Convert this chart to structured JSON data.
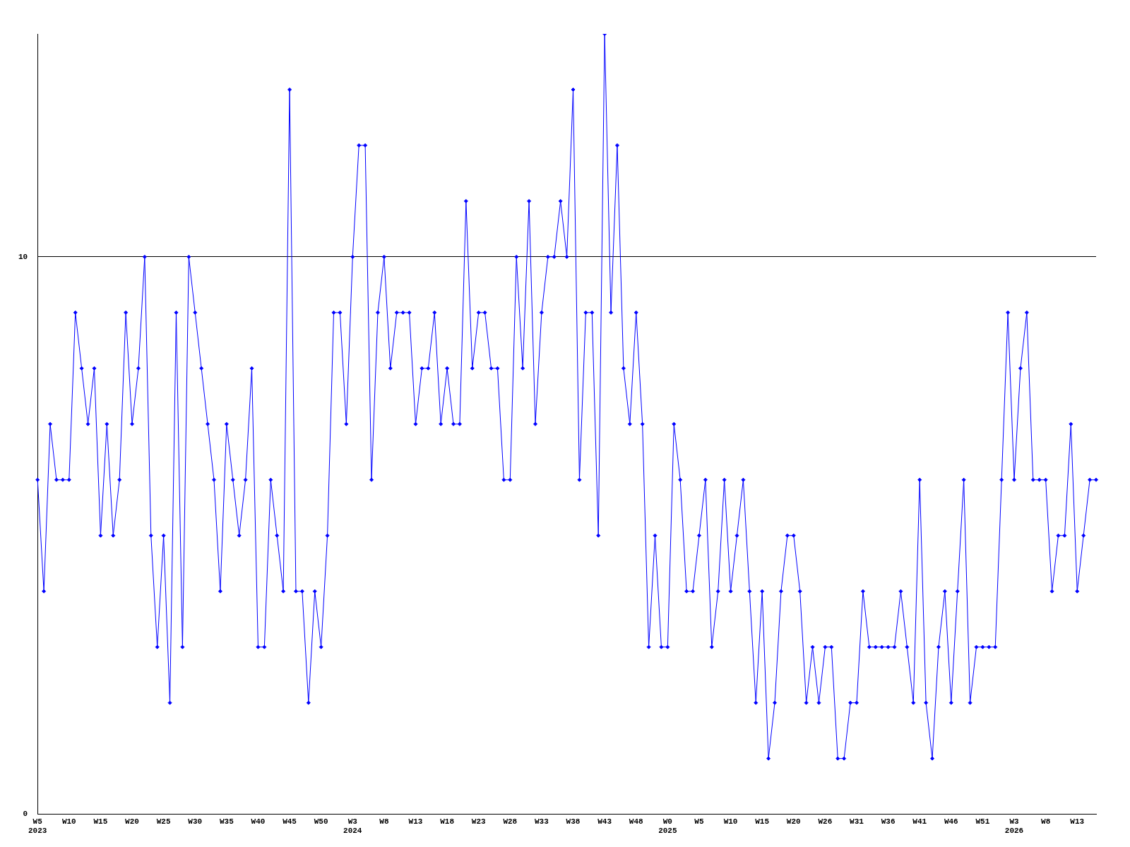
{
  "chart_data": {
    "type": "line",
    "categories": [
      "W5\n2023",
      null,
      null,
      null,
      null,
      "W10",
      null,
      null,
      null,
      null,
      "W15",
      null,
      null,
      null,
      null,
      "W20",
      null,
      null,
      null,
      null,
      "W25",
      null,
      null,
      null,
      null,
      "W30",
      null,
      null,
      null,
      null,
      "W35",
      null,
      null,
      null,
      null,
      "W40",
      null,
      null,
      null,
      null,
      "W45",
      null,
      null,
      null,
      null,
      "W50",
      null,
      null,
      null,
      null,
      "W3\n2024",
      null,
      null,
      null,
      null,
      "W8",
      null,
      null,
      null,
      null,
      "W13",
      null,
      null,
      null,
      null,
      "W18",
      null,
      null,
      null,
      null,
      "W23",
      null,
      null,
      null,
      null,
      "W28",
      null,
      null,
      null,
      null,
      "W33",
      null,
      null,
      null,
      null,
      "W38",
      null,
      null,
      null,
      null,
      "W43",
      null,
      null,
      null,
      null,
      "W48",
      null,
      null,
      null,
      null,
      "W0\n2025",
      null,
      null,
      null,
      null,
      "W5",
      null,
      null,
      null,
      null,
      "W10",
      null,
      null,
      null,
      null,
      "W15",
      null,
      null,
      null,
      null,
      "W20",
      null,
      null,
      null,
      null,
      "W26",
      null,
      null,
      null,
      null,
      "W31",
      null,
      null,
      null,
      null,
      "W36",
      null,
      null,
      null,
      null,
      "W41",
      null,
      null,
      null,
      null,
      "W46",
      null,
      null,
      null,
      null,
      "W51",
      null,
      null,
      null,
      null,
      "W3\n2026",
      null,
      null,
      null,
      null,
      "W8",
      null,
      null,
      null,
      null,
      "W13",
      null,
      null,
      null
    ],
    "series": [
      {
        "color": "#0000ff",
        "values": [
          6,
          4,
          7,
          6,
          6,
          6,
          9,
          8,
          7,
          8,
          5,
          7,
          5,
          6,
          9,
          7,
          8,
          10,
          5,
          3,
          5,
          2,
          9,
          3,
          10,
          9,
          8,
          7,
          6,
          4,
          7,
          6,
          5,
          6,
          8,
          3,
          3,
          6,
          5,
          4,
          13,
          4,
          4,
          2,
          4,
          3,
          5,
          9,
          9,
          7,
          10,
          12,
          12,
          6,
          9,
          10,
          8,
          9,
          9,
          9,
          7,
          8,
          8,
          9,
          7,
          8,
          7,
          7,
          11,
          8,
          9,
          9,
          8,
          8,
          6,
          6,
          10,
          8,
          11,
          7,
          9,
          10,
          10,
          11,
          10,
          13,
          6,
          9,
          9,
          5,
          14,
          9,
          12,
          8,
          7,
          9,
          7,
          3,
          5,
          3,
          3,
          7,
          6,
          4,
          4,
          5,
          6,
          3,
          4,
          6,
          4,
          5,
          6,
          4,
          2,
          4,
          1,
          2,
          4,
          5,
          5,
          4,
          2,
          3,
          2,
          3,
          3,
          1,
          1,
          2,
          2,
          4,
          3,
          3,
          3,
          3,
          3,
          4,
          3,
          2,
          6,
          2,
          1,
          3,
          4,
          2,
          4,
          6,
          2,
          3,
          3,
          3,
          3,
          6,
          9,
          6,
          8,
          9,
          6,
          6,
          6,
          4,
          5,
          5,
          7,
          4,
          5,
          6,
          6
        ]
      }
    ],
    "ylim": [
      0,
      14
    ],
    "yticks": [
      0,
      10
    ],
    "grid": "y",
    "legend": false,
    "marker": "diamond",
    "line_style": "solid"
  }
}
